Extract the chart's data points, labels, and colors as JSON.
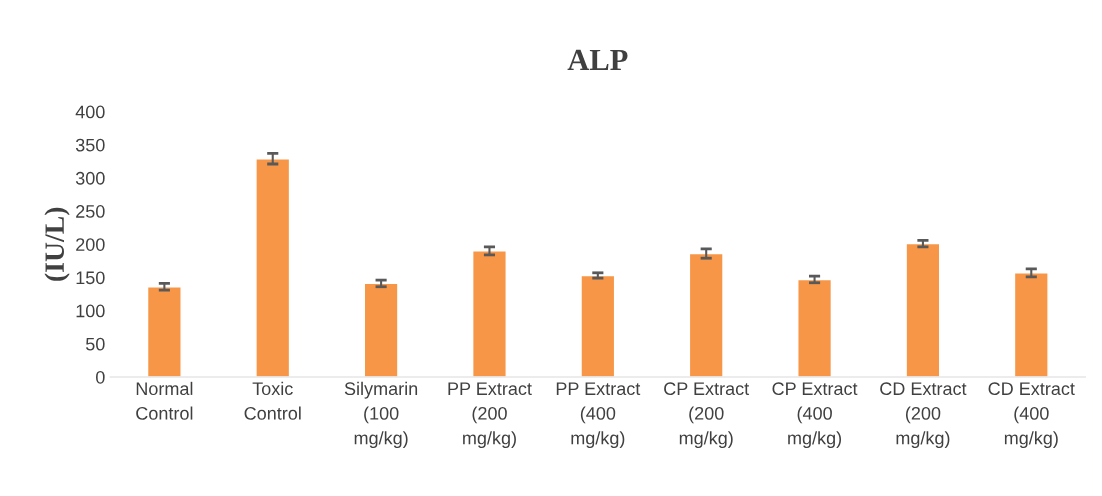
{
  "chart_data": {
    "type": "bar",
    "title": "ALP",
    "ylabel": "(IU/L)",
    "categories": [
      "Normal\nControl",
      "Toxic\nControl",
      "Silymarin\n(100\nmg/kg)",
      "PP Extract\n(200\nmg/kg)",
      "PP Extract\n(400\nmg/kg)",
      "CP Extract\n(200\nmg/kg)",
      "CP Extract\n(400\nmg/kg)",
      "CD Extract\n(200\nmg/kg)",
      "CD Extract\n(400\nmg/kg)"
    ],
    "values": [
      136,
      329,
      141,
      190,
      153,
      186,
      147,
      201,
      157
    ],
    "errors": [
      5,
      8,
      5,
      6,
      4,
      7,
      5,
      5,
      6
    ],
    "color": "#f79646",
    "ylim": [
      0,
      400
    ],
    "yticks": [
      0,
      50,
      100,
      150,
      200,
      250,
      300,
      350,
      400
    ],
    "grid": false,
    "legend": false
  }
}
